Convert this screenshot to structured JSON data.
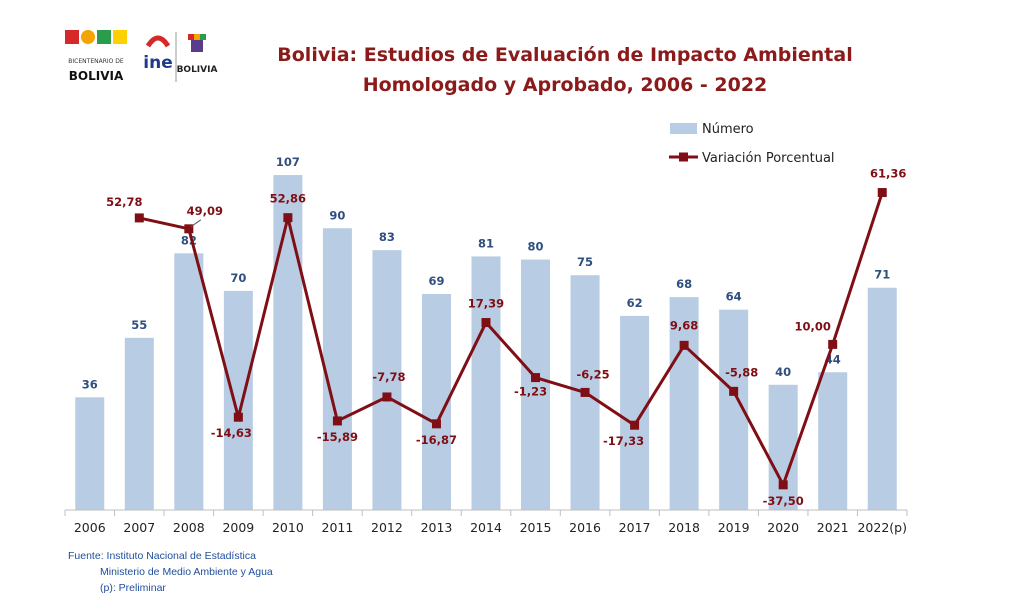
{
  "header": {
    "logo_left": "BICENTENARIO DE BOLIVIA",
    "logo_ine": "ine",
    "logo_right": "BOLIVIA",
    "title_line1": "Bolivia: Estudios de Evaluación de Impacto Ambiental",
    "title_line2": "Homologado y Aprobado, 2006 - 2022"
  },
  "source": {
    "line1": "Fuente: Instituto Nacional de Estadística",
    "line2": "Ministerio de Medio Ambiente y Agua",
    "line3": "(p): Preliminar"
  },
  "colors": {
    "bar": "#b8cce4",
    "line": "#7f0f14",
    "bar_label": "#2f4f7f",
    "line_label": "#7f0f14"
  },
  "chart_data": {
    "type": "bar",
    "title": "Bolivia: Estudios de Evaluación de Impacto Ambiental Homologado y Aprobado, 2006 - 2022",
    "categories": [
      "2006",
      "2007",
      "2008",
      "2009",
      "2010",
      "2011",
      "2012",
      "2013",
      "2014",
      "2015",
      "2016",
      "2017",
      "2018",
      "2019",
      "2020",
      "2021",
      "2022(p)"
    ],
    "series": [
      {
        "name": "Número",
        "type": "bar",
        "values": [
          36,
          55,
          82,
          70,
          107,
          90,
          83,
          69,
          81,
          80,
          75,
          62,
          68,
          64,
          40,
          44,
          71
        ],
        "labels": [
          "36",
          "55",
          "82",
          "70",
          "107",
          "90",
          "83",
          "69",
          "81",
          "80",
          "75",
          "62",
          "68",
          "64",
          "40",
          "44",
          "71"
        ]
      },
      {
        "name": "Variación Porcentual",
        "type": "line",
        "values": [
          null,
          52.78,
          49.09,
          -14.63,
          52.86,
          -15.89,
          -7.78,
          -16.87,
          17.39,
          -1.23,
          -6.25,
          -17.33,
          9.68,
          -5.88,
          -37.5,
          10.0,
          61.36
        ],
        "labels": [
          null,
          "52,78",
          "49,09",
          "-14,63",
          "52,86",
          "-15,89",
          "-7,78",
          "-16,87",
          "17,39",
          "-1,23",
          "-6,25",
          "-17,33",
          "9,68",
          "-5,88",
          "-37,50",
          "10,00",
          "61,36"
        ]
      }
    ],
    "ylim_bar": [
      0,
      115
    ],
    "ylim_line": [
      -45,
      70
    ],
    "legend": "top-right",
    "grid": false
  }
}
